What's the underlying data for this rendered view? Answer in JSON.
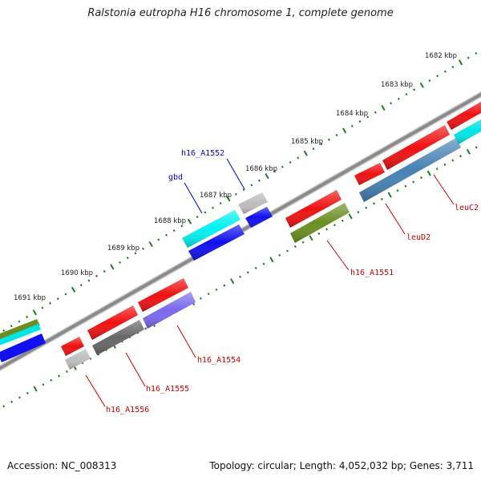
{
  "title": "Ralstonia eutropha H16 chromosome 1, complete genome",
  "footer": {
    "accession": "Accession: NC_008313",
    "summary": "Topology: circular; Length: 4,052,032 bp; Genes: 3,711"
  },
  "colors": {
    "backbone": "#8a8a8a",
    "tick": "#1e7d1e",
    "label_forward": "#0000cc",
    "label_reverse": "#cc0000",
    "gene_red": "#ee1111",
    "gene_cyan": "#00f0f0",
    "gene_blue": "#1010f0",
    "gene_gray_light": "#bdbdbd",
    "gene_gray_dark": "#666666",
    "gene_olive": "#6b8e23",
    "gene_steelblue": "#4682b4",
    "gene_slate": "#7b68ee"
  },
  "scale": {
    "unit": "kbp",
    "ticks": [
      "1682 kbp",
      "1683 kbp",
      "1684 kbp",
      "1685 kbp",
      "1686 kbp",
      "1687 kbp",
      "1688 kbp",
      "1689 kbp",
      "1690 kbp",
      "1691 kbp"
    ]
  },
  "gene_labels": [
    {
      "name": "h16_A1552",
      "color": "label_forward"
    },
    {
      "name": "gbd",
      "color": "label_forward"
    },
    {
      "name": "leuC2",
      "color": "label_reverse"
    },
    {
      "name": "leuD2",
      "color": "label_reverse"
    },
    {
      "name": "h16_A1551",
      "color": "label_reverse"
    },
    {
      "name": "h16_A1554",
      "color": "label_reverse"
    },
    {
      "name": "h16_A1555",
      "color": "label_reverse"
    },
    {
      "name": "h16_A1556",
      "color": "label_reverse"
    }
  ]
}
